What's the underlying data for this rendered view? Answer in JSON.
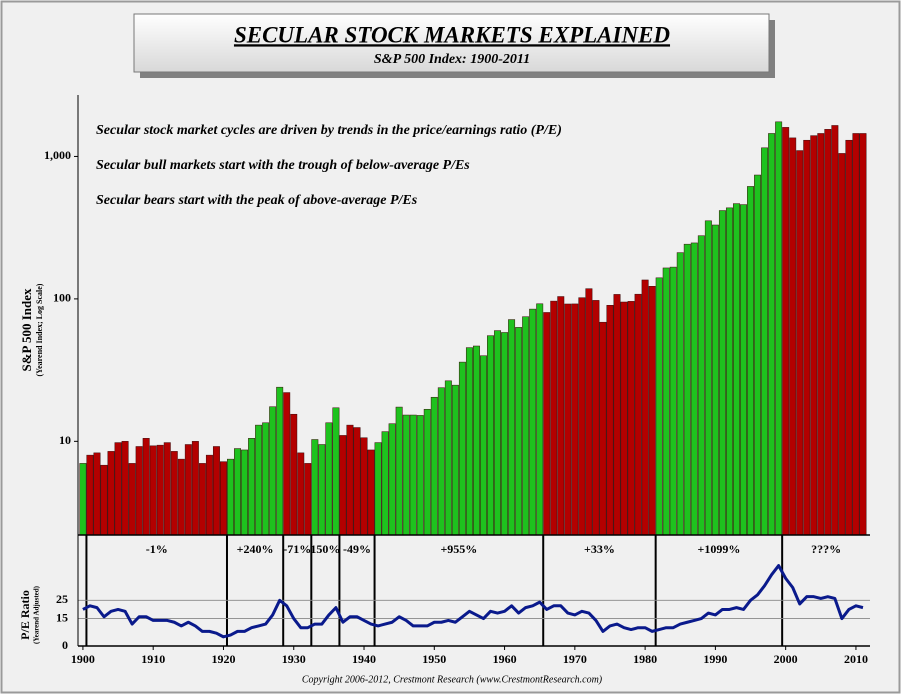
{
  "chart_data": [
    {
      "type": "bar",
      "title": "SECULAR STOCK MARKETS EXPLAINED",
      "subtitle": "S&P 500 Index: 1900-2011",
      "y_label": "S&P 500 Index",
      "y_sublabel": "(Yearend Index; Log Scale)",
      "log_scale": true,
      "annotations": [
        "Secular stock market cycles are driven by trends in the price/earnings ratio (P/E)",
        "Secular bull markets start with the trough of below-average P/Es",
        "Secular bears start with the peak of above-average P/Es"
      ],
      "xlim": [
        1899.3,
        2012
      ],
      "ylim": [
        2.2,
        2700
      ],
      "yticks": [
        10,
        100,
        {
          "value": 1000,
          "label": "1,000"
        }
      ],
      "x": [
        1900,
        1901,
        1902,
        1903,
        1904,
        1905,
        1906,
        1907,
        1908,
        1909,
        1910,
        1911,
        1912,
        1913,
        1914,
        1915,
        1916,
        1917,
        1918,
        1919,
        1920,
        1921,
        1922,
        1923,
        1924,
        1925,
        1926,
        1927,
        1928,
        1929,
        1930,
        1931,
        1932,
        1933,
        1934,
        1935,
        1936,
        1937,
        1938,
        1939,
        1940,
        1941,
        1942,
        1943,
        1944,
        1945,
        1946,
        1947,
        1948,
        1949,
        1950,
        1951,
        1952,
        1953,
        1954,
        1955,
        1956,
        1957,
        1958,
        1959,
        1960,
        1961,
        1962,
        1963,
        1964,
        1965,
        1966,
        1967,
        1968,
        1969,
        1970,
        1971,
        1972,
        1973,
        1974,
        1975,
        1976,
        1977,
        1978,
        1979,
        1980,
        1981,
        1982,
        1983,
        1984,
        1985,
        1986,
        1987,
        1988,
        1989,
        1990,
        1991,
        1992,
        1993,
        1994,
        1995,
        1996,
        1997,
        1998,
        1999,
        2000,
        2001,
        2002,
        2003,
        2004,
        2005,
        2006,
        2007,
        2008,
        2009,
        2010,
        2011
      ],
      "values": [
        7,
        8,
        8.3,
        6.8,
        8.5,
        9.8,
        10,
        7,
        9.2,
        10.5,
        9.3,
        9.4,
        9.8,
        8.5,
        7.5,
        9.5,
        10,
        7,
        8,
        9.2,
        7.2,
        7.5,
        8.9,
        8.7,
        10.5,
        13,
        13.5,
        17.5,
        24,
        22,
        15.5,
        8.3,
        7,
        10.3,
        9.5,
        13.5,
        17.2,
        11,
        13,
        12.5,
        10.6,
        8.7,
        9.8,
        11.7,
        13.3,
        17.4,
        15.3,
        15.3,
        15.2,
        16.8,
        20.4,
        23.8,
        26.6,
        24.8,
        36,
        45.5,
        46.7,
        39.9,
        55.2,
        59.9,
        58.1,
        71.6,
        63.1,
        75,
        84.8,
        92.4,
        80.3,
        96.5,
        103.9,
        92.1,
        92.2,
        102,
        118,
        97.6,
        68.6,
        90.2,
        107.5,
        95.1,
        96.1,
        107.9,
        135.8,
        122.6,
        140.6,
        164.9,
        167.2,
        211.3,
        242.2,
        247.1,
        277.7,
        353.4,
        330.2,
        417.1,
        435.7,
        466.5,
        459.3,
        615.9,
        740.7,
        1150,
        1450,
        1750,
        1600,
        1350,
        1100,
        1300,
        1400,
        1450,
        1550,
        1650,
        1050,
        1300,
        1450,
        1450
      ],
      "colors": [
        "#1ec21e",
        "#b30000",
        "#b30000",
        "#b30000",
        "#b30000",
        "#b30000",
        "#b30000",
        "#b30000",
        "#b30000",
        "#b30000",
        "#b30000",
        "#b30000",
        "#b30000",
        "#b30000",
        "#b30000",
        "#b30000",
        "#b30000",
        "#b30000",
        "#b30000",
        "#b30000",
        "#b30000",
        "#1ec21e",
        "#1ec21e",
        "#1ec21e",
        "#1ec21e",
        "#1ec21e",
        "#1ec21e",
        "#1ec21e",
        "#1ec21e",
        "#b30000",
        "#b30000",
        "#b30000",
        "#b30000",
        "#1ec21e",
        "#1ec21e",
        "#1ec21e",
        "#1ec21e",
        "#b30000",
        "#b30000",
        "#b30000",
        "#b30000",
        "#b30000",
        "#1ec21e",
        "#1ec21e",
        "#1ec21e",
        "#1ec21e",
        "#1ec21e",
        "#1ec21e",
        "#1ec21e",
        "#1ec21e",
        "#1ec21e",
        "#1ec21e",
        "#1ec21e",
        "#1ec21e",
        "#1ec21e",
        "#1ec21e",
        "#1ec21e",
        "#1ec21e",
        "#1ec21e",
        "#1ec21e",
        "#1ec21e",
        "#1ec21e",
        "#1ec21e",
        "#1ec21e",
        "#1ec21e",
        "#1ec21e",
        "#b30000",
        "#b30000",
        "#b30000",
        "#b30000",
        "#b30000",
        "#b30000",
        "#b30000",
        "#b30000",
        "#b30000",
        "#b30000",
        "#b30000",
        "#b30000",
        "#b30000",
        "#b30000",
        "#b30000",
        "#b30000",
        "#1ec21e",
        "#1ec21e",
        "#1ec21e",
        "#1ec21e",
        "#1ec21e",
        "#1ec21e",
        "#1ec21e",
        "#1ec21e",
        "#1ec21e",
        "#1ec21e",
        "#1ec21e",
        "#1ec21e",
        "#1ec21e",
        "#1ec21e",
        "#1ec21e",
        "#1ec21e",
        "#1ec21e",
        "#1ec21e",
        "#b30000",
        "#b30000",
        "#b30000",
        "#b30000",
        "#b30000",
        "#b30000",
        "#b30000",
        "#b30000",
        "#b30000",
        "#b30000",
        "#b30000",
        "#b30000"
      ],
      "periods": [
        {
          "start": 1901,
          "label": "-1%"
        },
        {
          "start": 1921,
          "label": "+240%"
        },
        {
          "start": 1929,
          "label": "-71%"
        },
        {
          "start": 1933,
          "label": "150%"
        },
        {
          "start": 1937,
          "label": "-49%"
        },
        {
          "start": 1942,
          "label": "+955%"
        },
        {
          "start": 1966,
          "label": "+33%"
        },
        {
          "start": 1982,
          "label": "+1099%"
        },
        {
          "start": 2000,
          "label": "???%"
        }
      ]
    },
    {
      "type": "line",
      "y_label": "P/E Ratio",
      "y_sublabel": "(Yearend Adjusted)",
      "color": "#0a1a8c",
      "grid": true,
      "xlim": [
        1899.3,
        2012
      ],
      "xticks": [
        1900,
        1910,
        1920,
        1930,
        1940,
        1950,
        1960,
        1970,
        1980,
        1990,
        2000,
        2010
      ],
      "ylim": [
        0,
        58
      ],
      "yticks": [
        0,
        15,
        25
      ],
      "x": [
        1900,
        1901,
        1902,
        1903,
        1904,
        1905,
        1906,
        1907,
        1908,
        1909,
        1910,
        1911,
        1912,
        1913,
        1914,
        1915,
        1916,
        1917,
        1918,
        1919,
        1920,
        1921,
        1922,
        1923,
        1924,
        1925,
        1926,
        1927,
        1928,
        1929,
        1930,
        1931,
        1932,
        1933,
        1934,
        1935,
        1936,
        1937,
        1938,
        1939,
        1940,
        1941,
        1942,
        1943,
        1944,
        1945,
        1946,
        1947,
        1948,
        1949,
        1950,
        1951,
        1952,
        1953,
        1954,
        1955,
        1956,
        1957,
        1958,
        1959,
        1960,
        1961,
        1962,
        1963,
        1964,
        1965,
        1966,
        1967,
        1968,
        1969,
        1970,
        1971,
        1972,
        1973,
        1974,
        1975,
        1976,
        1977,
        1978,
        1979,
        1980,
        1981,
        1982,
        1983,
        1984,
        1985,
        1986,
        1987,
        1988,
        1989,
        1990,
        1991,
        1992,
        1993,
        1994,
        1995,
        1996,
        1997,
        1998,
        1999,
        2000,
        2001,
        2002,
        2003,
        2004,
        2005,
        2006,
        2007,
        2008,
        2009,
        2010,
        2011
      ],
      "values": [
        20,
        22,
        21,
        16,
        19,
        20,
        19,
        12,
        16,
        16,
        14,
        14,
        14,
        13,
        11,
        13,
        11,
        8,
        8,
        7,
        5,
        6,
        8,
        8,
        10,
        11,
        12,
        17,
        25,
        22,
        15,
        10,
        10,
        12,
        12,
        17,
        21,
        13,
        16,
        16,
        14,
        12,
        11,
        12,
        13,
        16,
        14,
        11,
        11,
        11,
        13,
        13,
        14,
        13,
        16,
        19,
        17,
        15,
        19,
        18,
        19,
        22,
        18,
        21,
        22,
        24,
        20,
        22,
        22,
        18,
        17,
        19,
        18,
        14,
        8,
        11,
        12,
        10,
        9,
        10,
        10,
        8,
        9,
        10,
        10,
        12,
        13,
        14,
        15,
        18,
        17,
        20,
        20,
        21,
        20,
        25,
        28,
        33,
        39,
        44,
        37,
        32,
        23,
        27,
        27,
        26,
        27,
        26,
        15,
        20,
        22,
        21
      ]
    }
  ],
  "footer": "Copyright 2006-2012, Crestmont Research (www.CrestmontResearch.com)"
}
